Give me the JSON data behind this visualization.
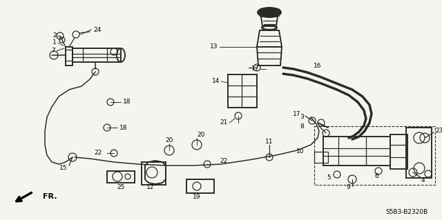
{
  "background_color": "#f5f5f0",
  "line_color": "#2a2a2a",
  "text_color": "#000000",
  "diagram_code": "S5B3-B2320B",
  "figsize": [
    6.4,
    3.19
  ],
  "dpi": 100,
  "lw_main": 1.4,
  "lw_thin": 0.9,
  "lw_pipe": 1.1,
  "label_fontsize": 6.5
}
